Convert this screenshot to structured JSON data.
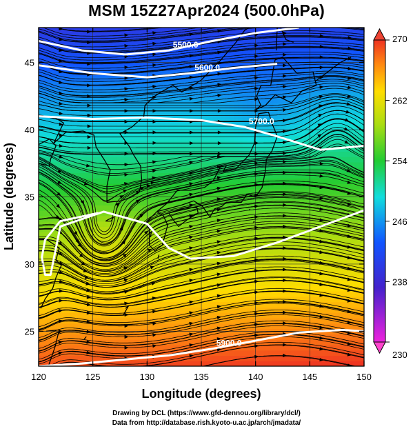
{
  "title": "MSM 15Z27Apr2024 (500.0hPa)",
  "chart_data": {
    "type": "heatmap",
    "xlabel": "Longitude (degrees)",
    "ylabel": "Latitude  (degrees)",
    "xlim": [
      120,
      150
    ],
    "ylim": [
      22.4,
      47.6
    ],
    "xticks": [
      "120",
      "125",
      "130",
      "135",
      "140",
      "145",
      "150"
    ],
    "yticks": [
      "25",
      "30",
      "35",
      "40",
      "45"
    ],
    "colorbar": {
      "ticks": [
        "230",
        "238",
        "246",
        "254",
        "262",
        "270"
      ],
      "range": [
        230,
        270
      ]
    },
    "contours": [
      {
        "label": "5500.0",
        "points": [
          [
            120,
            46.6
          ],
          [
            124,
            45.9
          ],
          [
            128,
            45.6
          ],
          [
            132,
            45.9
          ],
          [
            136,
            46.6
          ],
          [
            140,
            47.2
          ],
          [
            144,
            47.6
          ]
        ]
      },
      {
        "label": "5600.0",
        "points": [
          [
            120,
            44.8
          ],
          [
            125,
            44.2
          ],
          [
            130,
            43.9
          ],
          [
            134,
            44.2
          ],
          [
            138,
            44.6
          ],
          [
            142,
            44.9
          ]
        ]
      },
      {
        "label": "5700.0",
        "points": [
          [
            120,
            41.0
          ],
          [
            125,
            40.8
          ],
          [
            130,
            40.9
          ],
          [
            135,
            40.7
          ],
          [
            139,
            40.2
          ],
          [
            142,
            39.5
          ],
          [
            146,
            38.5
          ],
          [
            150,
            38.8
          ]
        ]
      },
      {
        "label": "",
        "points": [
          [
            125.5,
            33.8
          ],
          [
            122,
            33.2
          ],
          [
            120.6,
            31.8
          ],
          [
            120.3,
            30.5
          ],
          [
            120.6,
            29.2
          ],
          [
            121.1,
            29.2
          ],
          [
            122,
            32.8
          ],
          [
            126,
            33.9
          ],
          [
            130,
            33.0
          ],
          [
            132,
            31.2
          ],
          [
            134,
            30.4
          ],
          [
            138,
            30.6
          ],
          [
            142,
            31.6
          ],
          [
            146,
            32.8
          ],
          [
            150,
            34.0
          ]
        ]
      },
      {
        "label": "5900.0",
        "points": [
          [
            120,
            22.4
          ],
          [
            124,
            22.6
          ],
          [
            128,
            22.9
          ],
          [
            132,
            23.2
          ],
          [
            136,
            23.7
          ],
          [
            140,
            24.3
          ],
          [
            144,
            24.9
          ],
          [
            148,
            25.1
          ],
          [
            150,
            25.0
          ]
        ]
      }
    ]
  },
  "footer": {
    "line1": "Drawing by DCL (https://www.gfd-dennou.org/library/dcl/)",
    "line2": "Data from http://database.rish.kyoto-u.ac.jp/arch/jmadata/"
  }
}
